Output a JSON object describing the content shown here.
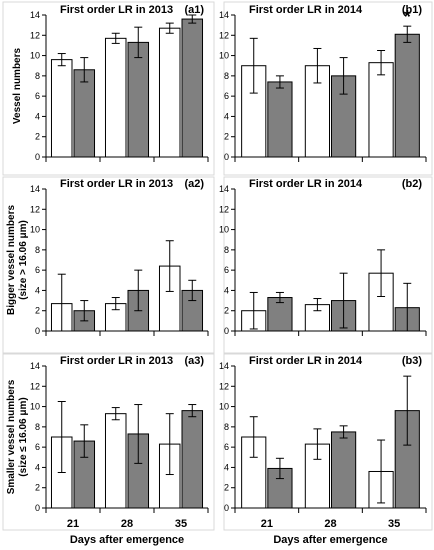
{
  "chart_data": [
    {
      "type": "bar",
      "panel": "a1",
      "panel_label": "(a1)",
      "title": "First order LR in 2013",
      "ylabel": "Vessel numbers",
      "ylim": [
        0,
        14
      ],
      "yticks": [
        0,
        2,
        4,
        6,
        8,
        10,
        12,
        14
      ],
      "categories": [
        "21",
        "28",
        "35"
      ],
      "xlabel": "",
      "series": [
        {
          "values": [
            9.6,
            11.7,
            12.7
          ],
          "errors": [
            0.6,
            0.5,
            0.5
          ],
          "color": "#ffffff"
        },
        {
          "values": [
            8.6,
            11.3,
            13.6
          ],
          "errors": [
            1.2,
            1.5,
            0.4
          ],
          "color": "#808080"
        }
      ],
      "annotation": ""
    },
    {
      "type": "bar",
      "panel": "b1",
      "panel_label": "(b1)",
      "title": "First order LR in 2014",
      "ylabel": "",
      "ylim": [
        0,
        14
      ],
      "yticks": [
        0,
        2,
        4,
        6,
        8,
        10,
        12,
        14
      ],
      "categories": [
        "21",
        "28",
        "35"
      ],
      "xlabel": "",
      "series": [
        {
          "values": [
            9.0,
            9.0,
            9.3
          ],
          "errors": [
            2.7,
            1.7,
            1.2
          ],
          "color": "#ffffff"
        },
        {
          "values": [
            7.4,
            8.0,
            12.1
          ],
          "errors": [
            0.6,
            1.8,
            0.8
          ],
          "color": "#808080"
        }
      ],
      "annotation": "*"
    },
    {
      "type": "bar",
      "panel": "a2",
      "panel_label": "(a2)",
      "title": "First order LR in 2013",
      "ylabel": "Bigger vessel numbers",
      "ylabel2": "(size > 16.06 μm)",
      "ylim": [
        0,
        14
      ],
      "yticks": [
        0,
        2,
        4,
        6,
        8,
        10,
        12,
        14
      ],
      "categories": [
        "21",
        "28",
        "35"
      ],
      "xlabel": "",
      "series": [
        {
          "values": [
            2.7,
            2.7,
            6.4
          ],
          "errors": [
            2.9,
            0.6,
            2.5
          ],
          "color": "#ffffff"
        },
        {
          "values": [
            2.0,
            4.0,
            4.0
          ],
          "errors": [
            1.0,
            2.0,
            1.0
          ],
          "color": "#808080"
        }
      ],
      "annotation": ""
    },
    {
      "type": "bar",
      "panel": "b2",
      "panel_label": "(b2)",
      "title": "First order LR in 2014",
      "ylabel": "",
      "ylim": [
        0,
        14
      ],
      "yticks": [
        0,
        2,
        4,
        6,
        8,
        10,
        12,
        14
      ],
      "categories": [
        "21",
        "28",
        "35"
      ],
      "xlabel": "",
      "series": [
        {
          "values": [
            2.0,
            2.6,
            5.7
          ],
          "errors": [
            1.8,
            0.6,
            2.3
          ],
          "color": "#ffffff"
        },
        {
          "values": [
            3.3,
            3.0,
            2.3
          ],
          "errors": [
            0.5,
            2.7,
            2.4
          ],
          "color": "#808080"
        }
      ],
      "annotation": ""
    },
    {
      "type": "bar",
      "panel": "a3",
      "panel_label": "(a3)",
      "title": "First order LR in 2013",
      "ylabel": "Smaller vessel numbers",
      "ylabel2": "(size ≤ 16.06 μm)",
      "ylim": [
        0,
        14
      ],
      "yticks": [
        0,
        2,
        4,
        6,
        8,
        10,
        12,
        14
      ],
      "categories": [
        "21",
        "28",
        "35"
      ],
      "xlabel": "Days after emergence",
      "series": [
        {
          "values": [
            7.0,
            9.3,
            6.3
          ],
          "errors": [
            3.5,
            0.6,
            3.0
          ],
          "color": "#ffffff"
        },
        {
          "values": [
            6.6,
            7.3,
            9.6
          ],
          "errors": [
            1.6,
            2.9,
            0.6
          ],
          "color": "#808080"
        }
      ],
      "annotation": ""
    },
    {
      "type": "bar",
      "panel": "b3",
      "panel_label": "(b3)",
      "title": "First order LR in 2014",
      "ylabel": "",
      "ylim": [
        0,
        14
      ],
      "yticks": [
        0,
        2,
        4,
        6,
        8,
        10,
        12,
        14
      ],
      "categories": [
        "21",
        "28",
        "35"
      ],
      "xlabel": "Days after emergence",
      "series": [
        {
          "values": [
            7.0,
            6.3,
            3.6
          ],
          "errors": [
            2.0,
            1.5,
            3.1
          ],
          "color": "#ffffff"
        },
        {
          "values": [
            3.9,
            7.5,
            9.6
          ],
          "errors": [
            1.0,
            0.6,
            3.4
          ],
          "color": "#808080"
        }
      ],
      "annotation": ""
    }
  ]
}
